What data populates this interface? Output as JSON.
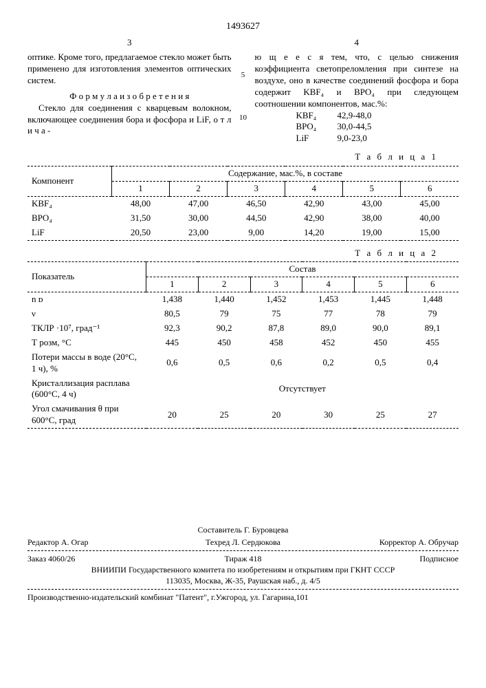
{
  "patent_number": "1493627",
  "page_left": "3",
  "page_right": "4",
  "line5": "5",
  "line10": "10",
  "left_para1": "оптике. Кроме того, предлагаемое стекло может быть применено для изготовления элементов оптических систем.",
  "formula_title": "Ф о р м у л а   и з о б р е т е н и я",
  "left_para2": "Стекло для соединения с кварцевым волокном, включающее соединения бора и фосфора и LiF, о т л и ч а -",
  "right_para1": "ю щ е е с я  тем, что, с целью снижения коэффициента светопреломления при синтезе на воздухе, оно в качестве соединений фосфора и бора содержит KBF₄ и BPO₄ при следующем соотношении компонентов, мас.%:",
  "comp": {
    "kbf4_label": "KBF₄",
    "kbf4_val": "42,9-48,0",
    "bpo4_label": "BPO₄",
    "bpo4_val": "30,0-44,5",
    "lif_label": "LiF",
    "lif_val": "9,0-23,0"
  },
  "table1_title": "Т а б л и ц а  1",
  "table1_header_left": "Компонент",
  "table1_header_span": "Содержание, мас.%, в составе",
  "t1_cols": [
    "1",
    "2",
    "3",
    "4",
    "5",
    "6"
  ],
  "t1_rows": [
    {
      "label": "KBF₄",
      "v": [
        "48,00",
        "47,00",
        "46,50",
        "42,90",
        "43,00",
        "45,00"
      ]
    },
    {
      "label": "BPO₄",
      "v": [
        "31,50",
        "30,00",
        "44,50",
        "42,90",
        "38,00",
        "40,00"
      ]
    },
    {
      "label": "LiF",
      "v": [
        "20,50",
        "23,00",
        "9,00",
        "14,20",
        "19,00",
        "15,00"
      ]
    }
  ],
  "table2_title": "Т а б л и ц а  2",
  "table2_header_left": "Показатель",
  "table2_header_span": "Состав",
  "t2_cols": [
    "1",
    "2",
    "3",
    "4",
    "5",
    "6"
  ],
  "t2_rows": [
    {
      "label": "n ᴅ",
      "v": [
        "1,438",
        "1,440",
        "1,452",
        "1,453",
        "1,445",
        "1,448"
      ]
    },
    {
      "label": "ν",
      "v": [
        "80,5",
        "79",
        "75",
        "77",
        "78",
        "79"
      ]
    },
    {
      "label": "ТКЛР ·10⁷, град⁻¹",
      "v": [
        "92,3",
        "90,2",
        "87,8",
        "89,0",
        "90,0",
        "89,1"
      ]
    },
    {
      "label": "Т розм, °C",
      "v": [
        "445",
        "450",
        "458",
        "452",
        "450",
        "455"
      ]
    },
    {
      "label": "Потери массы в воде (20°C, 1 ч), %",
      "v": [
        "0,6",
        "0,5",
        "0,6",
        "0,2",
        "0,5",
        "0,4"
      ]
    },
    {
      "label": "Кристаллизация расплава (600°C, 4 ч)",
      "span": "Отсутствует"
    },
    {
      "label": "Угол смачивания θ при 600°C, град",
      "v": [
        "20",
        "25",
        "20",
        "30",
        "25",
        "27"
      ]
    }
  ],
  "footer": {
    "sostavitel": "Составитель Г. Буровцева",
    "redaktor": "Редактор А. Огар",
    "tehred": "Техред Л. Сердюкова",
    "korrektor": "Корректор А. Обручар",
    "zakaz": "Заказ 4060/26",
    "tirazh": "Тираж 418",
    "podpisnoe": "Подписное",
    "org": "ВНИИПИ Государственного комитета по изобретениям и открытиям при ГКНТ СССР",
    "addr1": "113035, Москва, Ж-35, Раушская наб., д. 4/5",
    "addr2": "Производственно-издательский комбинат \"Патент\", г.Ужгород, ул. Гагарина,101"
  }
}
